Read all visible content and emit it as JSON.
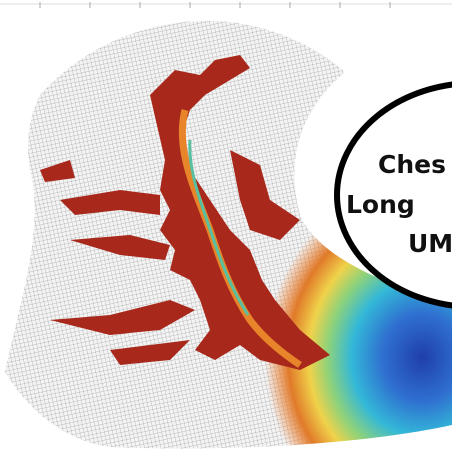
{
  "callout": {
    "lines": [
      "Ches",
      "Long",
      "UM"
    ]
  }
}
